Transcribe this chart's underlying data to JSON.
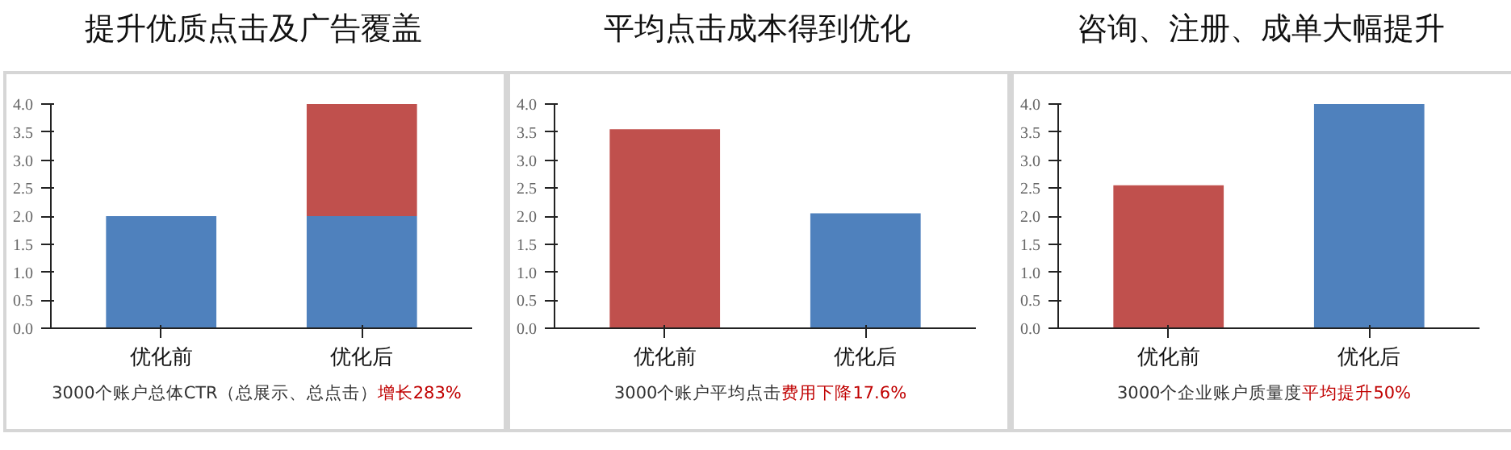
{
  "chart_data": [
    {
      "type": "bar",
      "title": "提升优质点击及广告覆盖",
      "categories": [
        "优化前",
        "优化后"
      ],
      "stacked": true,
      "series": [
        {
          "color": "#4f81bd",
          "values": [
            2.0,
            2.0
          ]
        },
        {
          "color": "#c0504d",
          "values": [
            null,
            2.0
          ]
        }
      ],
      "ylim": [
        0,
        4
      ],
      "yticks": [
        {
          "value": 0,
          "label": "0.0"
        },
        {
          "value": 0.5,
          "label": "0.5"
        },
        {
          "value": 1,
          "label": "1.0"
        },
        {
          "value": 1.5,
          "label": "1.5"
        },
        {
          "value": 2,
          "label": "2.0"
        },
        {
          "value": 2.5,
          "label": "2.5"
        },
        {
          "value": 3,
          "label": "3.0"
        },
        {
          "value": 3.5,
          "label": "3.5"
        },
        {
          "value": 4,
          "label": "4.0"
        }
      ],
      "grid": false,
      "annotations": [
        "3000个账户总体CTR（总展示、总点击）",
        "增长283%"
      ]
    },
    {
      "type": "bar",
      "title": "平均点击成本得到优化",
      "categories": [
        "优化前",
        "优化后"
      ],
      "values": [
        3.55,
        2.05
      ],
      "colors": [
        "#c0504d",
        "#4f81bd"
      ],
      "ylim": [
        0,
        4
      ],
      "yticks": [
        {
          "value": 0,
          "label": "0.0"
        },
        {
          "value": 0.5,
          "label": "0.5"
        },
        {
          "value": 1,
          "label": "1.0"
        },
        {
          "value": 1.5,
          "label": "1.5"
        },
        {
          "value": 2,
          "label": "2.0"
        },
        {
          "value": 2.5,
          "label": "2.5"
        },
        {
          "value": 3,
          "label": "3.0"
        },
        {
          "value": 3.5,
          "label": "3.5"
        },
        {
          "value": 4,
          "label": "4.0"
        }
      ],
      "grid": false,
      "annotations": [
        "3000个账户平均点击",
        "费用下降17.6%"
      ]
    },
    {
      "type": "bar",
      "title": "咨询、注册、成单大幅提升",
      "categories": [
        "优化前",
        "优化后"
      ],
      "values": [
        2.55,
        4.0
      ],
      "colors": [
        "#c0504d",
        "#4f81bd"
      ],
      "ylim": [
        0,
        4
      ],
      "yticks": [
        {
          "value": 0,
          "label": "0.0"
        },
        {
          "value": 0.5,
          "label": "0.5"
        },
        {
          "value": 1,
          "label": "1.0"
        },
        {
          "value": 1.5,
          "label": "1.5"
        },
        {
          "value": 2,
          "label": "2.0"
        },
        {
          "value": 2.5,
          "label": "2.5"
        },
        {
          "value": 3,
          "label": "3.0"
        },
        {
          "value": 3.5,
          "label": "3.5"
        },
        {
          "value": 4,
          "label": "4.0"
        }
      ],
      "grid": false,
      "annotations": [
        "3000个企业账户质量度",
        "平均提升50%"
      ]
    }
  ]
}
